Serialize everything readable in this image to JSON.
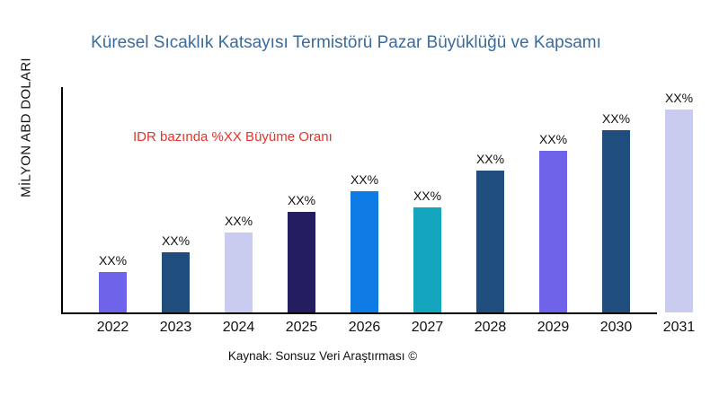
{
  "chart_data": {
    "type": "bar",
    "title": "Küresel Sıcaklık Katsayısı Termistörü Pazar Büyüklüğü ve Kapsamı",
    "ylabel": "MİLYON ABD DOLARI",
    "xlabel": "",
    "annotation": "IDR bazında %XX Büyüme Oranı",
    "categories": [
      "2022",
      "2023",
      "2024",
      "2025",
      "2026",
      "2027",
      "2028",
      "2029",
      "2030",
      "2031"
    ],
    "value_labels": [
      "XX%",
      "XX%",
      "XX%",
      "XX%",
      "XX%",
      "XX%",
      "XX%",
      "XX%",
      "XX%",
      "XX%"
    ],
    "values": [
      45,
      67,
      89,
      112,
      135,
      117,
      158,
      180,
      203,
      226
    ],
    "values_unit": "relative size estimated from bar heights; actual figures masked as XX% in the image",
    "bar_colors": [
      "#6F63EA",
      "#1F4E7E",
      "#C9CCEE",
      "#241E60",
      "#0E7CE4",
      "#14A6BE",
      "#1F4E7E",
      "#6F63EA",
      "#1F4E7E",
      "#C9CCEE"
    ],
    "legend": "none",
    "grid": false,
    "axis_color": "#000000",
    "title_color": "#3A6B9C",
    "annotation_color": "#E6332A"
  },
  "footer": {
    "source": "Kaynak: Sonsuz Veri Araştırması ©"
  }
}
